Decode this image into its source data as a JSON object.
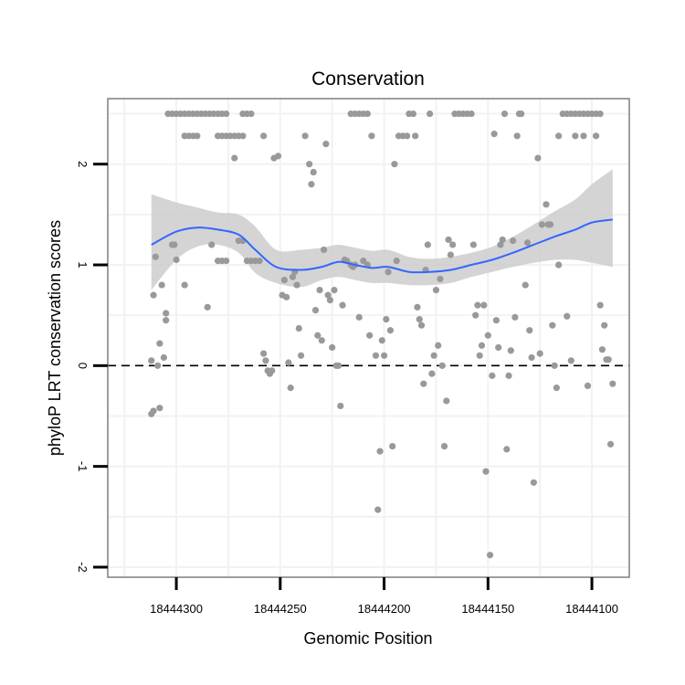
{
  "chart_data": {
    "type": "scatter",
    "title": "Conservation",
    "xlabel": "Genomic Position",
    "ylabel": "phyloP LRT conservation scores",
    "x_reversed": true,
    "xlim": [
      18444333,
      18444082
    ],
    "ylim": [
      -2.1,
      2.65
    ],
    "x_ticks": [
      18444300,
      18444250,
      18444200,
      18444150,
      18444100
    ],
    "x_tick_labels": [
      "18444300",
      "18444250",
      "18444200",
      "18444150",
      "18444100"
    ],
    "y_ticks": [
      -2,
      -1,
      0,
      1,
      2
    ],
    "y_tick_labels": [
      "-2",
      "-1",
      "0",
      "1",
      "2"
    ],
    "grid": true,
    "reference_line": {
      "y": 0,
      "style": "dashed",
      "color": "#000000"
    },
    "colors": {
      "points": "#999999",
      "smooth_line": "#3366ff",
      "confidence_band": "#cccccc",
      "panel_border": "#7f7f7f",
      "grid": "#f2f2f2"
    },
    "series": [
      {
        "type": "scatter",
        "points": [
          [
            18444312,
            -0.48
          ],
          [
            18444311,
            -0.45
          ],
          [
            18444312,
            0.05
          ],
          [
            18444311,
            0.7
          ],
          [
            18444310,
            1.08
          ],
          [
            18444309,
            0.0
          ],
          [
            18444308,
            -0.42
          ],
          [
            18444308,
            0.22
          ],
          [
            18444307,
            0.8
          ],
          [
            18444306,
            0.08
          ],
          [
            18444305,
            0.45
          ],
          [
            18444305,
            0.52
          ],
          [
            18444304,
            2.5
          ],
          [
            18444302,
            2.5
          ],
          [
            18444300,
            2.5
          ],
          [
            18444298,
            2.5
          ],
          [
            18444296,
            2.5
          ],
          [
            18444294,
            2.5
          ],
          [
            18444292,
            2.5
          ],
          [
            18444290,
            2.5
          ],
          [
            18444288,
            2.5
          ],
          [
            18444286,
            2.5
          ],
          [
            18444284,
            2.5
          ],
          [
            18444282,
            2.5
          ],
          [
            18444280,
            2.5
          ],
          [
            18444278,
            2.5
          ],
          [
            18444276,
            2.5
          ],
          [
            18444268,
            2.5
          ],
          [
            18444266,
            2.5
          ],
          [
            18444264,
            2.5
          ],
          [
            18444296,
            2.28
          ],
          [
            18444294,
            2.28
          ],
          [
            18444292,
            2.28
          ],
          [
            18444290,
            2.28
          ],
          [
            18444280,
            2.28
          ],
          [
            18444278,
            2.28
          ],
          [
            18444276,
            2.28
          ],
          [
            18444274,
            2.28
          ],
          [
            18444272,
            2.28
          ],
          [
            18444270,
            2.28
          ],
          [
            18444268,
            2.28
          ],
          [
            18444258,
            2.28
          ],
          [
            18444302,
            1.2
          ],
          [
            18444301,
            1.2
          ],
          [
            18444300,
            1.05
          ],
          [
            18444296,
            0.8
          ],
          [
            18444285,
            0.58
          ],
          [
            18444283,
            1.2
          ],
          [
            18444280,
            1.04
          ],
          [
            18444278,
            1.04
          ],
          [
            18444276,
            1.04
          ],
          [
            18444272,
            2.06
          ],
          [
            18444270,
            1.24
          ],
          [
            18444268,
            1.24
          ],
          [
            18444266,
            1.04
          ],
          [
            18444264,
            1.04
          ],
          [
            18444262,
            1.04
          ],
          [
            18444260,
            1.04
          ],
          [
            18444258,
            0.12
          ],
          [
            18444257,
            0.05
          ],
          [
            18444256,
            -0.05
          ],
          [
            18444255,
            -0.08
          ],
          [
            18444254,
            -0.05
          ],
          [
            18444253,
            2.06
          ],
          [
            18444251,
            2.08
          ],
          [
            18444249,
            0.7
          ],
          [
            18444248,
            0.85
          ],
          [
            18444247,
            0.68
          ],
          [
            18444246,
            0.03
          ],
          [
            18444245,
            -0.22
          ],
          [
            18444244,
            0.88
          ],
          [
            18444243,
            0.93
          ],
          [
            18444242,
            0.8
          ],
          [
            18444241,
            0.37
          ],
          [
            18444240,
            0.1
          ],
          [
            18444238,
            2.28
          ],
          [
            18444236,
            2.0
          ],
          [
            18444235,
            1.8
          ],
          [
            18444234,
            1.92
          ],
          [
            18444233,
            0.55
          ],
          [
            18444232,
            0.3
          ],
          [
            18444231,
            0.75
          ],
          [
            18444230,
            0.25
          ],
          [
            18444229,
            1.15
          ],
          [
            18444228,
            2.2
          ],
          [
            18444227,
            0.7
          ],
          [
            18444226,
            0.65
          ],
          [
            18444225,
            0.18
          ],
          [
            18444224,
            0.75
          ],
          [
            18444223,
            0.0
          ],
          [
            18444222,
            0.0
          ],
          [
            18444221,
            -0.4
          ],
          [
            18444220,
            0.6
          ],
          [
            18444219,
            1.05
          ],
          [
            18444218,
            1.04
          ],
          [
            18444216,
            2.5
          ],
          [
            18444214,
            2.5
          ],
          [
            18444212,
            2.5
          ],
          [
            18444210,
            2.5
          ],
          [
            18444208,
            2.5
          ],
          [
            18444216,
            1.0
          ],
          [
            18444215,
            0.98
          ],
          [
            18444214,
            1.0
          ],
          [
            18444212,
            0.48
          ],
          [
            18444210,
            1.04
          ],
          [
            18444208,
            1.0
          ],
          [
            18444207,
            0.3
          ],
          [
            18444206,
            2.28
          ],
          [
            18444204,
            0.1
          ],
          [
            18444203,
            -1.43
          ],
          [
            18444202,
            -0.85
          ],
          [
            18444201,
            0.25
          ],
          [
            18444200,
            0.1
          ],
          [
            18444199,
            0.46
          ],
          [
            18444198,
            0.93
          ],
          [
            18444197,
            0.35
          ],
          [
            18444196,
            -0.8
          ],
          [
            18444195,
            2.0
          ],
          [
            18444194,
            1.04
          ],
          [
            18444193,
            2.28
          ],
          [
            18444191,
            2.28
          ],
          [
            18444189,
            2.28
          ],
          [
            18444188,
            2.5
          ],
          [
            18444186,
            2.5
          ],
          [
            18444185,
            2.28
          ],
          [
            18444184,
            0.58
          ],
          [
            18444183,
            0.46
          ],
          [
            18444182,
            0.4
          ],
          [
            18444181,
            -0.18
          ],
          [
            18444180,
            0.95
          ],
          [
            18444179,
            1.2
          ],
          [
            18444178,
            2.5
          ],
          [
            18444177,
            -0.08
          ],
          [
            18444176,
            0.1
          ],
          [
            18444175,
            0.75
          ],
          [
            18444174,
            0.2
          ],
          [
            18444173,
            0.86
          ],
          [
            18444172,
            0.0
          ],
          [
            18444171,
            -0.8
          ],
          [
            18444170,
            -0.35
          ],
          [
            18444169,
            1.25
          ],
          [
            18444168,
            1.1
          ],
          [
            18444167,
            1.2
          ],
          [
            18444166,
            2.5
          ],
          [
            18444164,
            2.5
          ],
          [
            18444162,
            2.5
          ],
          [
            18444160,
            2.5
          ],
          [
            18444158,
            2.5
          ],
          [
            18444157,
            1.2
          ],
          [
            18444156,
            0.5
          ],
          [
            18444155,
            0.6
          ],
          [
            18444154,
            0.1
          ],
          [
            18444153,
            0.2
          ],
          [
            18444152,
            0.6
          ],
          [
            18444151,
            -1.05
          ],
          [
            18444150,
            0.3
          ],
          [
            18444149,
            -1.88
          ],
          [
            18444148,
            -0.1
          ],
          [
            18444147,
            2.3
          ],
          [
            18444146,
            0.45
          ],
          [
            18444145,
            0.18
          ],
          [
            18444144,
            1.2
          ],
          [
            18444143,
            1.25
          ],
          [
            18444142,
            2.5
          ],
          [
            18444141,
            -0.83
          ],
          [
            18444140,
            -0.1
          ],
          [
            18444139,
            0.15
          ],
          [
            18444138,
            1.24
          ],
          [
            18444137,
            0.48
          ],
          [
            18444136,
            2.28
          ],
          [
            18444135,
            2.5
          ],
          [
            18444134,
            2.5
          ],
          [
            18444132,
            0.8
          ],
          [
            18444131,
            1.22
          ],
          [
            18444130,
            0.35
          ],
          [
            18444129,
            0.08
          ],
          [
            18444128,
            -1.16
          ],
          [
            18444126,
            2.06
          ],
          [
            18444125,
            0.12
          ],
          [
            18444124,
            1.4
          ],
          [
            18444122,
            1.6
          ],
          [
            18444121,
            1.4
          ],
          [
            18444120,
            1.4
          ],
          [
            18444119,
            0.4
          ],
          [
            18444118,
            0.0
          ],
          [
            18444117,
            -0.22
          ],
          [
            18444116,
            1.0
          ],
          [
            18444114,
            2.5
          ],
          [
            18444112,
            2.5
          ],
          [
            18444110,
            2.5
          ],
          [
            18444108,
            2.5
          ],
          [
            18444106,
            2.5
          ],
          [
            18444104,
            2.5
          ],
          [
            18444102,
            2.5
          ],
          [
            18444100,
            2.5
          ],
          [
            18444098,
            2.5
          ],
          [
            18444096,
            2.5
          ],
          [
            18444116,
            2.28
          ],
          [
            18444112,
            0.49
          ],
          [
            18444110,
            0.05
          ],
          [
            18444108,
            2.28
          ],
          [
            18444104,
            2.28
          ],
          [
            18444102,
            -0.2
          ],
          [
            18444098,
            2.28
          ],
          [
            18444096,
            0.6
          ],
          [
            18444095,
            0.16
          ],
          [
            18444094,
            0.4
          ],
          [
            18444093,
            0.06
          ],
          [
            18444092,
            0.06
          ],
          [
            18444091,
            -0.78
          ],
          [
            18444090,
            -0.18
          ]
        ]
      },
      {
        "type": "smooth",
        "x": [
          18444312,
          18444300,
          18444290,
          18444280,
          18444270,
          18444262,
          18444252,
          18444240,
          18444230,
          18444222,
          18444214,
          18444206,
          18444198,
          18444188,
          18444178,
          18444168,
          18444158,
          18444148,
          18444138,
          18444128,
          18444118,
          18444108,
          18444100,
          18444090
        ],
        "y": [
          1.2,
          1.33,
          1.37,
          1.35,
          1.3,
          1.15,
          0.98,
          0.95,
          0.98,
          1.03,
          1.0,
          0.97,
          0.98,
          0.93,
          0.93,
          0.95,
          1.0,
          1.05,
          1.12,
          1.2,
          1.28,
          1.35,
          1.42,
          1.45
        ],
        "lower": [
          0.75,
          1.05,
          1.18,
          1.2,
          1.12,
          0.92,
          0.82,
          0.78,
          0.85,
          0.88,
          0.85,
          0.82,
          0.82,
          0.8,
          0.8,
          0.82,
          0.88,
          0.93,
          0.98,
          1.02,
          1.05,
          1.05,
          1.02,
          0.98
        ],
        "upper": [
          1.7,
          1.62,
          1.57,
          1.52,
          1.5,
          1.38,
          1.15,
          1.15,
          1.17,
          1.2,
          1.17,
          1.14,
          1.15,
          1.08,
          1.06,
          1.08,
          1.12,
          1.18,
          1.28,
          1.4,
          1.53,
          1.65,
          1.8,
          1.95
        ]
      }
    ]
  }
}
